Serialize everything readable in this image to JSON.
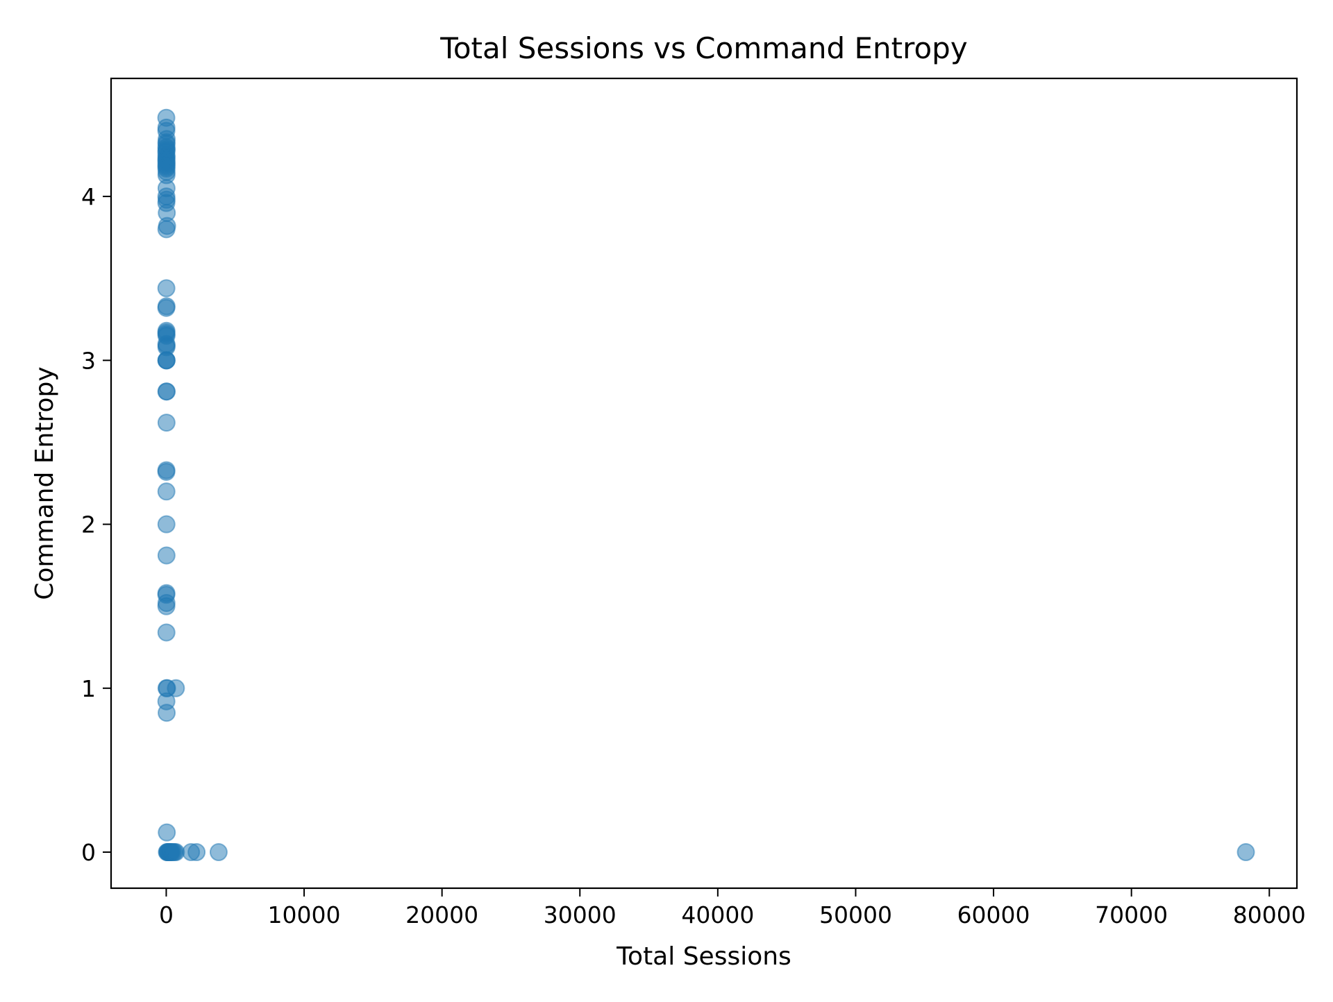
{
  "chart_data": {
    "type": "scatter",
    "title": "Total Sessions vs Command Entropy",
    "xlabel": "Total Sessions",
    "ylabel": "Command Entropy",
    "xlim": [
      -4000,
      82000
    ],
    "ylim": [
      -0.22,
      4.72
    ],
    "xticks": [
      0,
      10000,
      20000,
      30000,
      40000,
      50000,
      60000,
      70000,
      80000
    ],
    "xtick_labels": [
      "0",
      "10000",
      "20000",
      "30000",
      "40000",
      "50000",
      "60000",
      "70000",
      "80000"
    ],
    "yticks": [
      0,
      1,
      2,
      3,
      4
    ],
    "ytick_labels": [
      "0",
      "1",
      "2",
      "3",
      "4"
    ],
    "grid": false,
    "legend": "none",
    "marker_color": "#1f77b4",
    "marker_alpha": 0.5,
    "series": [
      {
        "x": [
          5,
          12,
          8,
          30,
          15,
          20,
          10,
          25,
          18,
          6,
          14,
          22,
          9,
          16,
          11,
          28,
          7,
          19,
          13,
          24,
          17,
          21,
          10,
          26,
          8,
          40,
          60,
          12,
          10,
          20,
          5,
          15,
          8,
          12,
          18,
          10,
          25,
          14,
          22,
          9,
          16,
          11,
          30,
          20,
          10,
          7,
          13,
          15,
          19,
          12,
          6,
          17,
          9,
          14,
          50,
          80,
          120,
          150,
          200,
          250,
          300,
          350,
          400,
          500,
          600,
          700,
          1800,
          2200,
          3800,
          78300,
          40,
          60,
          700,
          20,
          10,
          30
        ],
        "y": [
          4.48,
          4.42,
          4.4,
          4.35,
          4.33,
          4.32,
          4.3,
          4.29,
          4.28,
          4.27,
          4.25,
          4.24,
          4.23,
          4.22,
          4.21,
          4.2,
          4.19,
          4.18,
          4.17,
          4.15,
          4.13,
          4.05,
          4.0,
          3.98,
          3.96,
          3.9,
          3.82,
          3.8,
          3.44,
          3.33,
          3.32,
          3.18,
          3.17,
          3.16,
          3.15,
          3.1,
          3.09,
          3.08,
          3.0,
          3.0,
          3.0,
          2.81,
          2.81,
          2.62,
          2.33,
          2.32,
          2.2,
          2.0,
          1.81,
          1.58,
          1.57,
          1.52,
          1.5,
          1.34,
          0,
          0,
          0,
          0,
          0,
          0,
          0,
          0,
          0,
          0,
          0,
          0,
          0,
          0,
          0,
          0,
          0.12,
          1.0,
          1.0,
          1.0,
          0.92,
          0.85
        ]
      }
    ]
  }
}
